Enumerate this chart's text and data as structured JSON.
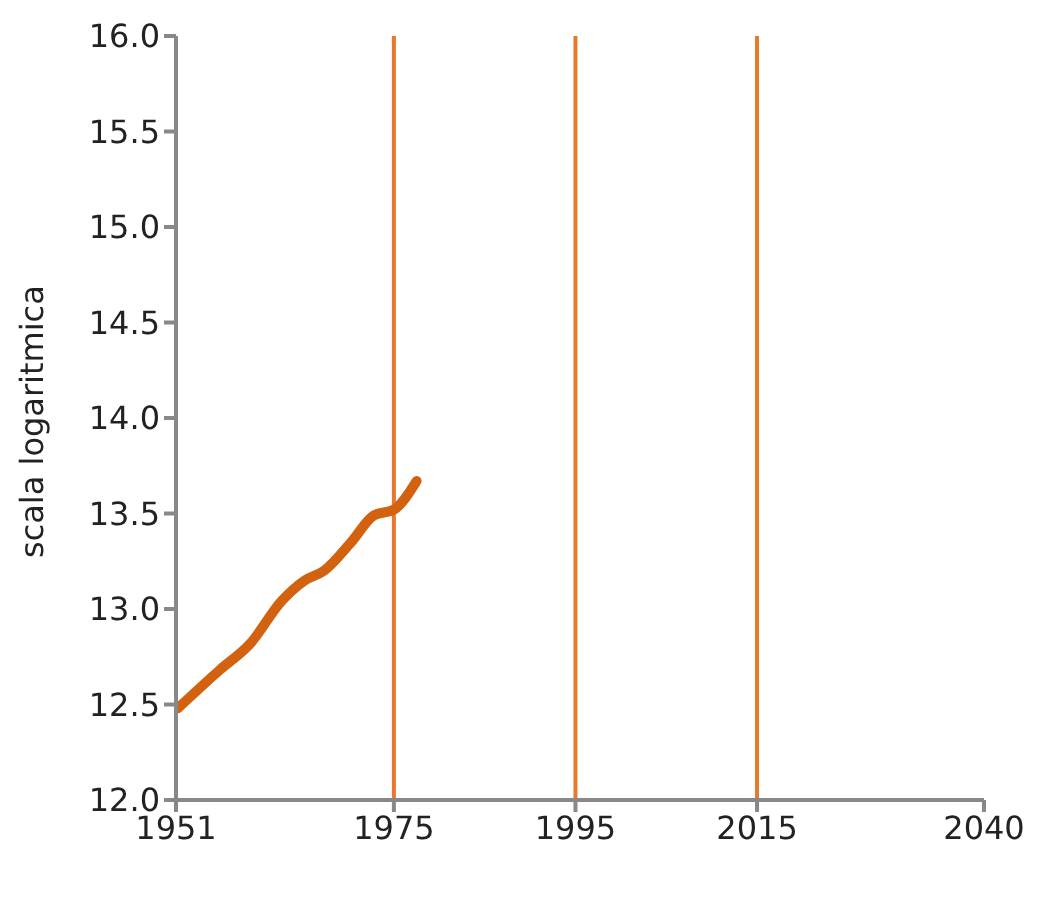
{
  "chart_data": {
    "type": "line",
    "ylabel": "scala logaritmica",
    "x": [
      1951.2,
      1955.8,
      1959.2,
      1962.6,
      1965.2,
      1967.3,
      1970.3,
      1972.8,
      1975,
      1977.5
    ],
    "series": [
      {
        "color": "#d2620f",
        "values": [
          12.48,
          12.68,
          12.82,
          13.04,
          13.15,
          13.2,
          13.35,
          13.49,
          13.52,
          13.67
        ]
      }
    ],
    "xlim": [
      1951,
      2040
    ],
    "xticks": [
      1951,
      1975,
      1995,
      2015,
      2040
    ],
    "ylim": [
      12,
      16
    ],
    "yticks": [
      {
        "value": 12,
        "label": "12.0"
      },
      {
        "value": 12.5,
        "label": "12.5"
      },
      {
        "value": 13,
        "label": "13.0"
      },
      {
        "value": 13.5,
        "label": "13.5"
      },
      {
        "value": 14,
        "label": "14.0"
      },
      {
        "value": 14.5,
        "label": "14.5"
      },
      {
        "value": 15,
        "label": "15.0"
      },
      {
        "value": 15.5,
        "label": "15.5"
      },
      {
        "value": 16,
        "label": "16.0"
      }
    ],
    "ref_lines": [
      {
        "axis": "x",
        "value": 1975,
        "color": "#e8782a"
      },
      {
        "axis": "x",
        "value": 1995,
        "color": "#e8782a"
      },
      {
        "axis": "x",
        "value": 2015,
        "color": "#e8782a"
      }
    ],
    "grid": false,
    "marker": "none",
    "line_style": "solid"
  }
}
